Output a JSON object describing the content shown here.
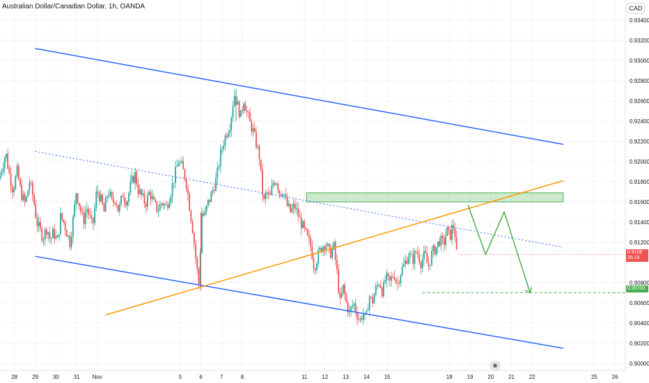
{
  "header": {
    "title": "Australian Dollar/Canadian Dollar, 1h, OANDA",
    "currency": "CAD"
  },
  "price_tags": {
    "last_price": "0.9108",
    "countdown": "35:19",
    "target_price": "0.90700"
  },
  "chart_data": {
    "type": "candlestick",
    "symbol": "Australian Dollar/Canadian Dollar",
    "interval": "1h",
    "source": "OANDA",
    "y_axis": {
      "ticks": [
        "0.93400",
        "0.93200",
        "0.93000",
        "0.92800",
        "0.92600",
        "0.92400",
        "0.92200",
        "0.92000",
        "0.91800",
        "0.91600",
        "0.91400",
        "0.91200",
        "0.90800",
        "0.90600",
        "0.90400",
        "0.90200",
        "0.90000"
      ],
      "range": [
        0.8993,
        0.936
      ]
    },
    "x_axis": {
      "ticks": [
        "28",
        "29",
        "30",
        "31",
        "Nov",
        "5",
        "6",
        "7",
        "8",
        "11",
        "12",
        "13",
        "14",
        "15",
        "18",
        "19",
        "20",
        "21",
        "22",
        "25",
        "26"
      ],
      "tick_days": [
        -4,
        -3,
        -2,
        -1,
        0,
        4,
        5,
        6,
        7,
        10,
        11,
        12,
        13,
        14,
        17,
        18,
        19,
        20,
        21,
        24,
        25
      ],
      "range": [
        -4.7,
        25.5
      ]
    },
    "price_path": [
      [
        -4.7,
        0.9182
      ],
      [
        -4.45,
        0.92
      ],
      [
        -4.35,
        0.9209
      ],
      [
        -4.2,
        0.919
      ],
      [
        -4.0,
        0.9172
      ],
      [
        -3.8,
        0.919
      ],
      [
        -3.6,
        0.9168
      ],
      [
        -3.4,
        0.9158
      ],
      [
        -3.2,
        0.918
      ],
      [
        -3.0,
        0.9162
      ],
      [
        -2.85,
        0.914
      ],
      [
        -2.7,
        0.9132
      ],
      [
        -2.55,
        0.9125
      ],
      [
        -2.35,
        0.9135
      ],
      [
        -2.2,
        0.9122
      ],
      [
        -2.05,
        0.913
      ],
      [
        -1.85,
        0.9121
      ],
      [
        -1.7,
        0.9145
      ],
      [
        -1.55,
        0.914
      ],
      [
        -1.4,
        0.913
      ],
      [
        -1.25,
        0.912
      ],
      [
        -1.05,
        0.915
      ],
      [
        -0.95,
        0.917
      ],
      [
        -0.8,
        0.9158
      ],
      [
        -0.6,
        0.914
      ],
      [
        -0.45,
        0.9155
      ],
      [
        -0.3,
        0.9145
      ],
      [
        -0.15,
        0.9135
      ],
      [
        0.05,
        0.9172
      ],
      [
        0.2,
        0.9165
      ],
      [
        0.4,
        0.915
      ],
      [
        0.6,
        0.9172
      ],
      [
        0.8,
        0.9158
      ],
      [
        0.95,
        0.9165
      ],
      [
        1.1,
        0.915
      ],
      [
        1.3,
        0.9168
      ],
      [
        1.5,
        0.916
      ],
      [
        1.7,
        0.9178
      ],
      [
        1.9,
        0.9187
      ],
      [
        2.05,
        0.9172
      ],
      [
        2.2,
        0.9166
      ],
      [
        2.4,
        0.9158
      ],
      [
        2.6,
        0.917
      ],
      [
        2.8,
        0.9158
      ],
      [
        3.0,
        0.9152
      ],
      [
        3.2,
        0.916
      ],
      [
        3.4,
        0.9155
      ],
      [
        3.6,
        0.9168
      ],
      [
        3.8,
        0.9185
      ],
      [
        4.0,
        0.92
      ],
      [
        4.15,
        0.9195
      ],
      [
        4.35,
        0.9182
      ],
      [
        4.5,
        0.916
      ],
      [
        4.7,
        0.913
      ],
      [
        4.85,
        0.91
      ],
      [
        5.0,
        0.9075
      ],
      [
        5.1,
        0.915
      ],
      [
        5.25,
        0.9145
      ],
      [
        5.4,
        0.9158
      ],
      [
        5.55,
        0.9165
      ],
      [
        5.7,
        0.9175
      ],
      [
        5.85,
        0.9185
      ],
      [
        6.0,
        0.9205
      ],
      [
        6.15,
        0.9218
      ],
      [
        6.3,
        0.9228
      ],
      [
        6.5,
        0.9238
      ],
      [
        6.6,
        0.9255
      ],
      [
        6.7,
        0.9266
      ],
      [
        6.85,
        0.9255
      ],
      [
        7.0,
        0.9245
      ],
      [
        7.15,
        0.9262
      ],
      [
        7.3,
        0.9248
      ],
      [
        7.45,
        0.9238
      ],
      [
        7.6,
        0.923
      ],
      [
        7.75,
        0.9218
      ],
      [
        7.9,
        0.9205
      ],
      [
        8.0,
        0.918
      ],
      [
        8.1,
        0.9158
      ],
      [
        8.25,
        0.917
      ],
      [
        8.4,
        0.9162
      ],
      [
        8.55,
        0.9178
      ],
      [
        8.7,
        0.9183
      ],
      [
        8.9,
        0.9168
      ],
      [
        9.05,
        0.9172
      ],
      [
        9.2,
        0.9158
      ],
      [
        9.4,
        0.915
      ],
      [
        9.6,
        0.9156
      ],
      [
        9.8,
        0.9145
      ],
      [
        10.0,
        0.9135
      ],
      [
        10.2,
        0.9125
      ],
      [
        10.4,
        0.9115
      ],
      [
        10.55,
        0.9095
      ],
      [
        10.7,
        0.9105
      ],
      [
        10.9,
        0.9115
      ],
      [
        11.1,
        0.912
      ],
      [
        11.3,
        0.9108
      ],
      [
        11.5,
        0.9115
      ],
      [
        11.65,
        0.909
      ],
      [
        11.8,
        0.906
      ],
      [
        11.95,
        0.9075
      ],
      [
        12.1,
        0.906
      ],
      [
        12.25,
        0.905
      ],
      [
        12.45,
        0.906
      ],
      [
        12.6,
        0.905
      ],
      [
        12.75,
        0.9042
      ],
      [
        12.9,
        0.905
      ],
      [
        13.05,
        0.9042
      ],
      [
        13.2,
        0.9068
      ],
      [
        13.35,
        0.906
      ],
      [
        13.5,
        0.9072
      ],
      [
        13.7,
        0.9082
      ],
      [
        13.85,
        0.907
      ],
      [
        14.0,
        0.9085
      ],
      [
        14.2,
        0.908
      ],
      [
        14.4,
        0.909
      ],
      [
        14.55,
        0.9078
      ],
      [
        14.75,
        0.9092
      ],
      [
        14.9,
        0.9098
      ],
      [
        15.1,
        0.9108
      ],
      [
        15.3,
        0.9102
      ],
      [
        15.5,
        0.9112
      ],
      [
        15.7,
        0.91
      ],
      [
        15.9,
        0.9108
      ],
      [
        16.05,
        0.9095
      ],
      [
        16.25,
        0.911
      ],
      [
        16.45,
        0.9115
      ],
      [
        16.6,
        0.9122
      ],
      [
        16.8,
        0.9118
      ],
      [
        16.95,
        0.9132
      ],
      [
        17.1,
        0.9125
      ],
      [
        17.25,
        0.9138
      ],
      [
        17.35,
        0.9128
      ],
      [
        17.42,
        0.9108
      ]
    ],
    "key_points": {
      "high_price": 0.9272,
      "low_price": 0.9043,
      "last_price": 0.9108
    },
    "annotations": {
      "channel_upper": [
        [
          -3.0,
          0.9312
        ],
        [
          22.5,
          0.9217
        ]
      ],
      "channel_lower": [
        [
          -3.0,
          0.9106
        ],
        [
          22.5,
          0.9015
        ]
      ],
      "channel_mid_dotted": [
        [
          -3.0,
          0.921
        ],
        [
          22.5,
          0.9115
        ]
      ],
      "orange_trendline": [
        [
          0.4,
          0.9048
        ],
        [
          22.5,
          0.9181
        ]
      ],
      "resistance_zone": {
        "x": [
          10.1,
          22.5
        ],
        "y": [
          0.916,
          0.9169
        ]
      },
      "target_dashed_level": {
        "x": [
          15.7,
          25.5
        ],
        "y": 0.907
      },
      "projection_path": [
        [
          17.9,
          0.9157
        ],
        [
          18.75,
          0.9108
        ],
        [
          19.65,
          0.915
        ],
        [
          20.9,
          0.907
        ]
      ]
    },
    "colors": {
      "up": "#26a69a",
      "down": "#ef5350",
      "channel": "#2962ff",
      "trendline": "#ff9800",
      "zone": "#4caf50",
      "projection": "#4caf50",
      "last_price_tag": "#ef5350",
      "target_tag": "#4caf50"
    }
  }
}
